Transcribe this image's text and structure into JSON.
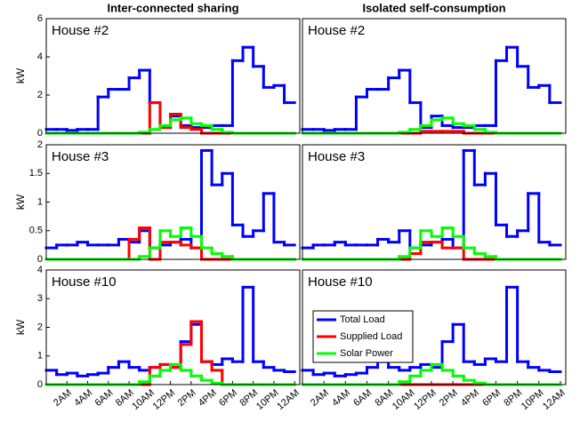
{
  "chart_data": [
    {
      "type": "step",
      "title": "Inter-connected sharing",
      "annotation": "House #2",
      "ylabel": "kW",
      "x": [
        0,
        1,
        2,
        3,
        4,
        5,
        6,
        7,
        8,
        9,
        10,
        11,
        12,
        13,
        14,
        15,
        16,
        17,
        18,
        19,
        20,
        21,
        22,
        23
      ],
      "xlim": [
        0,
        24.5
      ],
      "ylim": [
        0,
        6
      ],
      "yticks": [
        0,
        2,
        4,
        6
      ],
      "series": [
        {
          "color": "#0000ff",
          "values": [
            0.2,
            0.2,
            0.15,
            0.2,
            0.2,
            1.9,
            2.3,
            2.3,
            2.9,
            3.3,
            1.6,
            0.3,
            0.9,
            0.4,
            0.3,
            0.3,
            0.4,
            0.4,
            3.8,
            4.5,
            3.5,
            2.4,
            2.5,
            1.6
          ]
        },
        {
          "color": "#ff0000",
          "values": [
            0,
            0,
            0,
            0,
            0,
            0,
            0,
            0,
            0,
            0,
            1.6,
            0.3,
            1.0,
            0.3,
            0.2,
            0,
            0,
            0,
            0,
            0,
            0,
            0,
            0,
            0
          ]
        },
        {
          "color": "#00ff00",
          "values": [
            0,
            0,
            0,
            0,
            0,
            0,
            0,
            0,
            0,
            0.05,
            0.2,
            0.4,
            0.7,
            0.8,
            0.5,
            0.4,
            0.2,
            0.05,
            0,
            0,
            0,
            0,
            0,
            0
          ]
        }
      ]
    },
    {
      "type": "step",
      "title": "Isolated self-consumption",
      "annotation": "House #2",
      "x": [
        0,
        1,
        2,
        3,
        4,
        5,
        6,
        7,
        8,
        9,
        10,
        11,
        12,
        13,
        14,
        15,
        16,
        17,
        18,
        19,
        20,
        21,
        22,
        23
      ],
      "xlim": [
        0,
        24.5
      ],
      "ylim": [
        0,
        6
      ],
      "series": [
        {
          "color": "#0000ff",
          "values": [
            0.2,
            0.2,
            0.15,
            0.2,
            0.2,
            1.9,
            2.3,
            2.3,
            2.9,
            3.3,
            1.6,
            0.3,
            0.9,
            0.4,
            0.3,
            0.3,
            0.4,
            0.4,
            3.8,
            4.5,
            3.5,
            2.4,
            2.5,
            1.6
          ]
        },
        {
          "color": "#ff0000",
          "values": [
            0,
            0,
            0,
            0,
            0,
            0,
            0,
            0,
            0,
            0,
            0,
            0.1,
            0.1,
            0.1,
            0.1,
            0,
            0,
            0,
            0,
            0,
            0,
            0,
            0,
            0
          ]
        },
        {
          "color": "#00ff00",
          "values": [
            0,
            0,
            0,
            0,
            0,
            0,
            0,
            0,
            0,
            0.05,
            0.2,
            0.4,
            0.7,
            0.8,
            0.5,
            0.4,
            0.2,
            0.05,
            0,
            0,
            0,
            0,
            0,
            0
          ]
        }
      ]
    },
    {
      "type": "step",
      "annotation": "House #3",
      "ylabel": "kW",
      "x": [
        0,
        1,
        2,
        3,
        4,
        5,
        6,
        7,
        8,
        9,
        10,
        11,
        12,
        13,
        14,
        15,
        16,
        17,
        18,
        19,
        20,
        21,
        22,
        23
      ],
      "xlim": [
        0,
        24.5
      ],
      "ylim": [
        0,
        2
      ],
      "yticks": [
        0,
        0.5,
        1,
        1.5,
        2
      ],
      "series": [
        {
          "color": "#0000ff",
          "values": [
            0.2,
            0.25,
            0.25,
            0.3,
            0.25,
            0.25,
            0.25,
            0.35,
            0.3,
            0.5,
            0.2,
            0.25,
            0.3,
            0.35,
            0.2,
            1.9,
            1.3,
            1.5,
            0.6,
            0.4,
            0.5,
            1.15,
            0.3,
            0.25
          ]
        },
        {
          "color": "#ff0000",
          "values": [
            0,
            0,
            0,
            0,
            0,
            0,
            0,
            0,
            0.35,
            0.55,
            0,
            0.3,
            0.3,
            0.25,
            0.2,
            0,
            0,
            0,
            0,
            0,
            0,
            0,
            0,
            0
          ]
        },
        {
          "color": "#00ff00",
          "values": [
            0,
            0,
            0,
            0,
            0,
            0,
            0,
            0,
            0,
            0.05,
            0.2,
            0.5,
            0.4,
            0.55,
            0.4,
            0.2,
            0.1,
            0.05,
            0,
            0,
            0,
            0,
            0,
            0
          ]
        }
      ]
    },
    {
      "type": "step",
      "annotation": "House #3",
      "x": [
        0,
        1,
        2,
        3,
        4,
        5,
        6,
        7,
        8,
        9,
        10,
        11,
        12,
        13,
        14,
        15,
        16,
        17,
        18,
        19,
        20,
        21,
        22,
        23
      ],
      "xlim": [
        0,
        24.5
      ],
      "ylim": [
        0,
        2
      ],
      "series": [
        {
          "color": "#0000ff",
          "values": [
            0.2,
            0.25,
            0.25,
            0.3,
            0.25,
            0.25,
            0.25,
            0.35,
            0.3,
            0.5,
            0.2,
            0.25,
            0.3,
            0.35,
            0.2,
            1.9,
            1.3,
            1.5,
            0.6,
            0.4,
            0.5,
            1.15,
            0.3,
            0.25
          ]
        },
        {
          "color": "#ff0000",
          "values": [
            0,
            0,
            0,
            0,
            0,
            0,
            0,
            0,
            0,
            0,
            0.1,
            0.3,
            0.3,
            0.2,
            0.2,
            0,
            0,
            0,
            0,
            0,
            0,
            0,
            0,
            0
          ]
        },
        {
          "color": "#00ff00",
          "values": [
            0,
            0,
            0,
            0,
            0,
            0,
            0,
            0,
            0,
            0.05,
            0.2,
            0.5,
            0.4,
            0.55,
            0.4,
            0.2,
            0.1,
            0.05,
            0,
            0,
            0,
            0,
            0,
            0
          ]
        }
      ]
    },
    {
      "type": "step",
      "annotation": "House #10",
      "ylabel": "kW",
      "x": [
        0,
        1,
        2,
        3,
        4,
        5,
        6,
        7,
        8,
        9,
        10,
        11,
        12,
        13,
        14,
        15,
        16,
        17,
        18,
        19,
        20,
        21,
        22,
        23
      ],
      "xlim": [
        0,
        24.5
      ],
      "ylim": [
        0,
        4
      ],
      "yticks": [
        0,
        1,
        2,
        3,
        4
      ],
      "xticks": [
        {
          "value": 2,
          "label": "2AM"
        },
        {
          "value": 4,
          "label": "4AM"
        },
        {
          "value": 6,
          "label": "6AM"
        },
        {
          "value": 8,
          "label": "8AM"
        },
        {
          "value": 10,
          "label": "10AM"
        },
        {
          "value": 12,
          "label": "12PM"
        },
        {
          "value": 14,
          "label": "2PM"
        },
        {
          "value": 16,
          "label": "4PM"
        },
        {
          "value": 18,
          "label": "6PM"
        },
        {
          "value": 20,
          "label": "8PM"
        },
        {
          "value": 22,
          "label": "10PM"
        },
        {
          "value": 24,
          "label": "12AM"
        }
      ],
      "series": [
        {
          "color": "#0000ff",
          "values": [
            0.5,
            0.35,
            0.4,
            0.3,
            0.35,
            0.4,
            0.6,
            0.8,
            0.6,
            0.5,
            0.6,
            0.7,
            0.6,
            1.5,
            2.1,
            0.8,
            0.7,
            0.9,
            0.8,
            3.4,
            0.8,
            0.6,
            0.5,
            0.45
          ]
        },
        {
          "color": "#ff0000",
          "values": [
            0,
            0,
            0,
            0,
            0,
            0,
            0,
            0,
            0,
            0,
            0.6,
            0.7,
            0.6,
            1.4,
            2.2,
            0.8,
            0.5,
            0,
            0,
            0,
            0,
            0,
            0,
            0
          ]
        },
        {
          "color": "#00ff00",
          "values": [
            0,
            0,
            0,
            0,
            0,
            0,
            0,
            0,
            0,
            0.1,
            0.3,
            0.5,
            0.7,
            0.5,
            0.3,
            0.15,
            0.05,
            0,
            0,
            0,
            0,
            0,
            0,
            0
          ]
        }
      ]
    },
    {
      "type": "step",
      "annotation": "House #10",
      "legend": "center-left",
      "x": [
        0,
        1,
        2,
        3,
        4,
        5,
        6,
        7,
        8,
        9,
        10,
        11,
        12,
        13,
        14,
        15,
        16,
        17,
        18,
        19,
        20,
        21,
        22,
        23
      ],
      "xlim": [
        0,
        24.5
      ],
      "ylim": [
        0,
        4
      ],
      "xticks": [
        {
          "value": 2,
          "label": "2AM"
        },
        {
          "value": 4,
          "label": "4AM"
        },
        {
          "value": 6,
          "label": "6AM"
        },
        {
          "value": 8,
          "label": "8AM"
        },
        {
          "value": 10,
          "label": "10AM"
        },
        {
          "value": 12,
          "label": "12PM"
        },
        {
          "value": 14,
          "label": "2PM"
        },
        {
          "value": 16,
          "label": "4PM"
        },
        {
          "value": 18,
          "label": "6PM"
        },
        {
          "value": 20,
          "label": "8PM"
        },
        {
          "value": 22,
          "label": "10PM"
        },
        {
          "value": 24,
          "label": "12AM"
        }
      ],
      "series": [
        {
          "name": "Total  Load",
          "color": "#0000ff",
          "values": [
            0.5,
            0.35,
            0.4,
            0.3,
            0.35,
            0.4,
            0.6,
            0.8,
            0.6,
            0.5,
            0.6,
            0.7,
            0.6,
            1.5,
            2.1,
            0.8,
            0.7,
            0.9,
            0.8,
            3.4,
            0.8,
            0.6,
            0.5,
            0.45
          ]
        },
        {
          "name": "Supplied Load",
          "color": "#ff0000",
          "values": [
            0,
            0,
            0,
            0,
            0,
            0,
            0,
            0,
            0,
            0,
            0,
            0,
            0,
            0,
            0,
            0,
            0,
            0,
            0,
            0,
            0,
            0,
            0,
            0
          ]
        },
        {
          "name": "Solar Power",
          "color": "#00ff00",
          "values": [
            0,
            0,
            0,
            0,
            0,
            0,
            0,
            0,
            0,
            0.1,
            0.3,
            0.5,
            0.7,
            0.5,
            0.3,
            0.15,
            0.05,
            0,
            0,
            0,
            0,
            0,
            0,
            0
          ]
        }
      ]
    }
  ]
}
